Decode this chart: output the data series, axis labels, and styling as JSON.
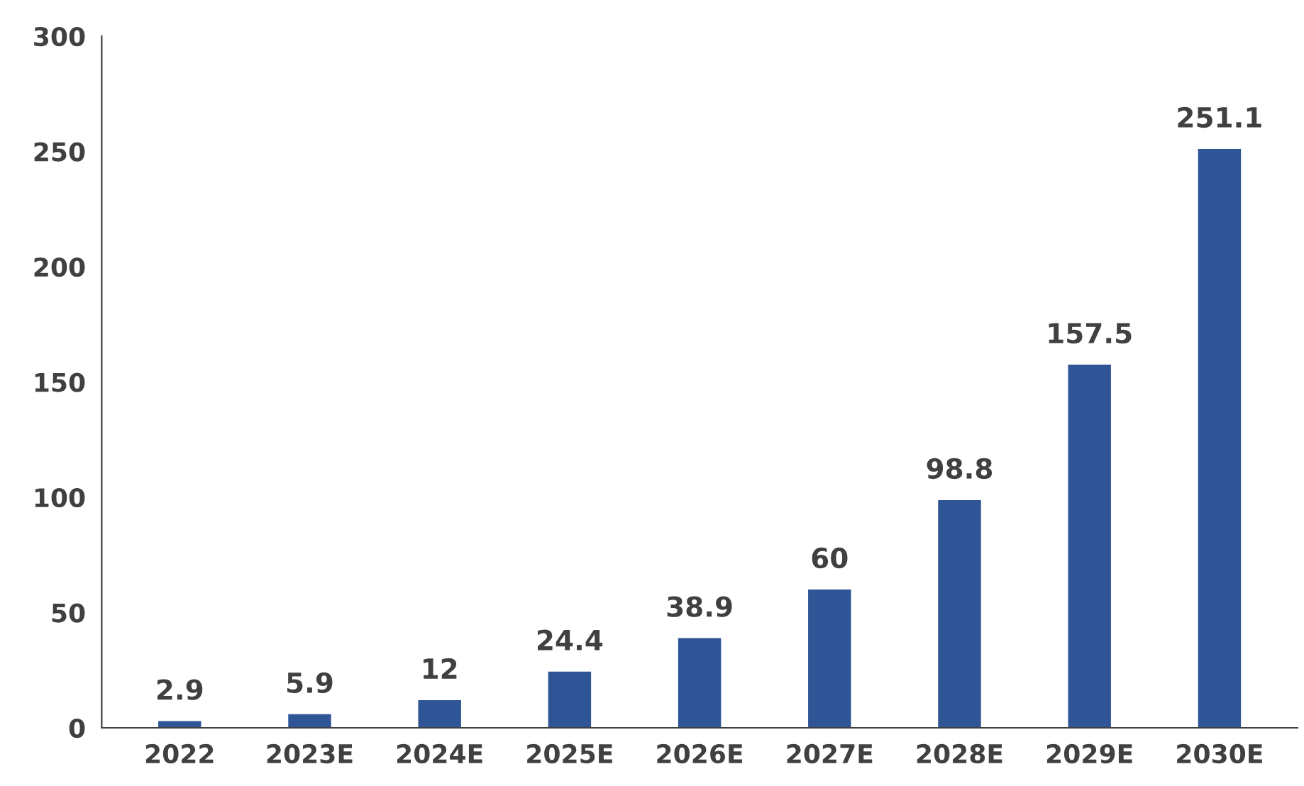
{
  "chart_data": {
    "type": "bar",
    "categories": [
      "2022",
      "2023E",
      "2024E",
      "2025E",
      "2026E",
      "2027E",
      "2028E",
      "2029E",
      "2030E"
    ],
    "values": [
      2.9,
      5.9,
      12,
      24.4,
      38.9,
      60,
      98.8,
      157.5,
      251.1
    ],
    "color": "#2f5597",
    "ylim": [
      0,
      300
    ],
    "yticks": [
      0,
      50,
      100,
      150,
      200,
      250,
      300
    ],
    "data_labels": true,
    "grid": false,
    "legend": false
  }
}
